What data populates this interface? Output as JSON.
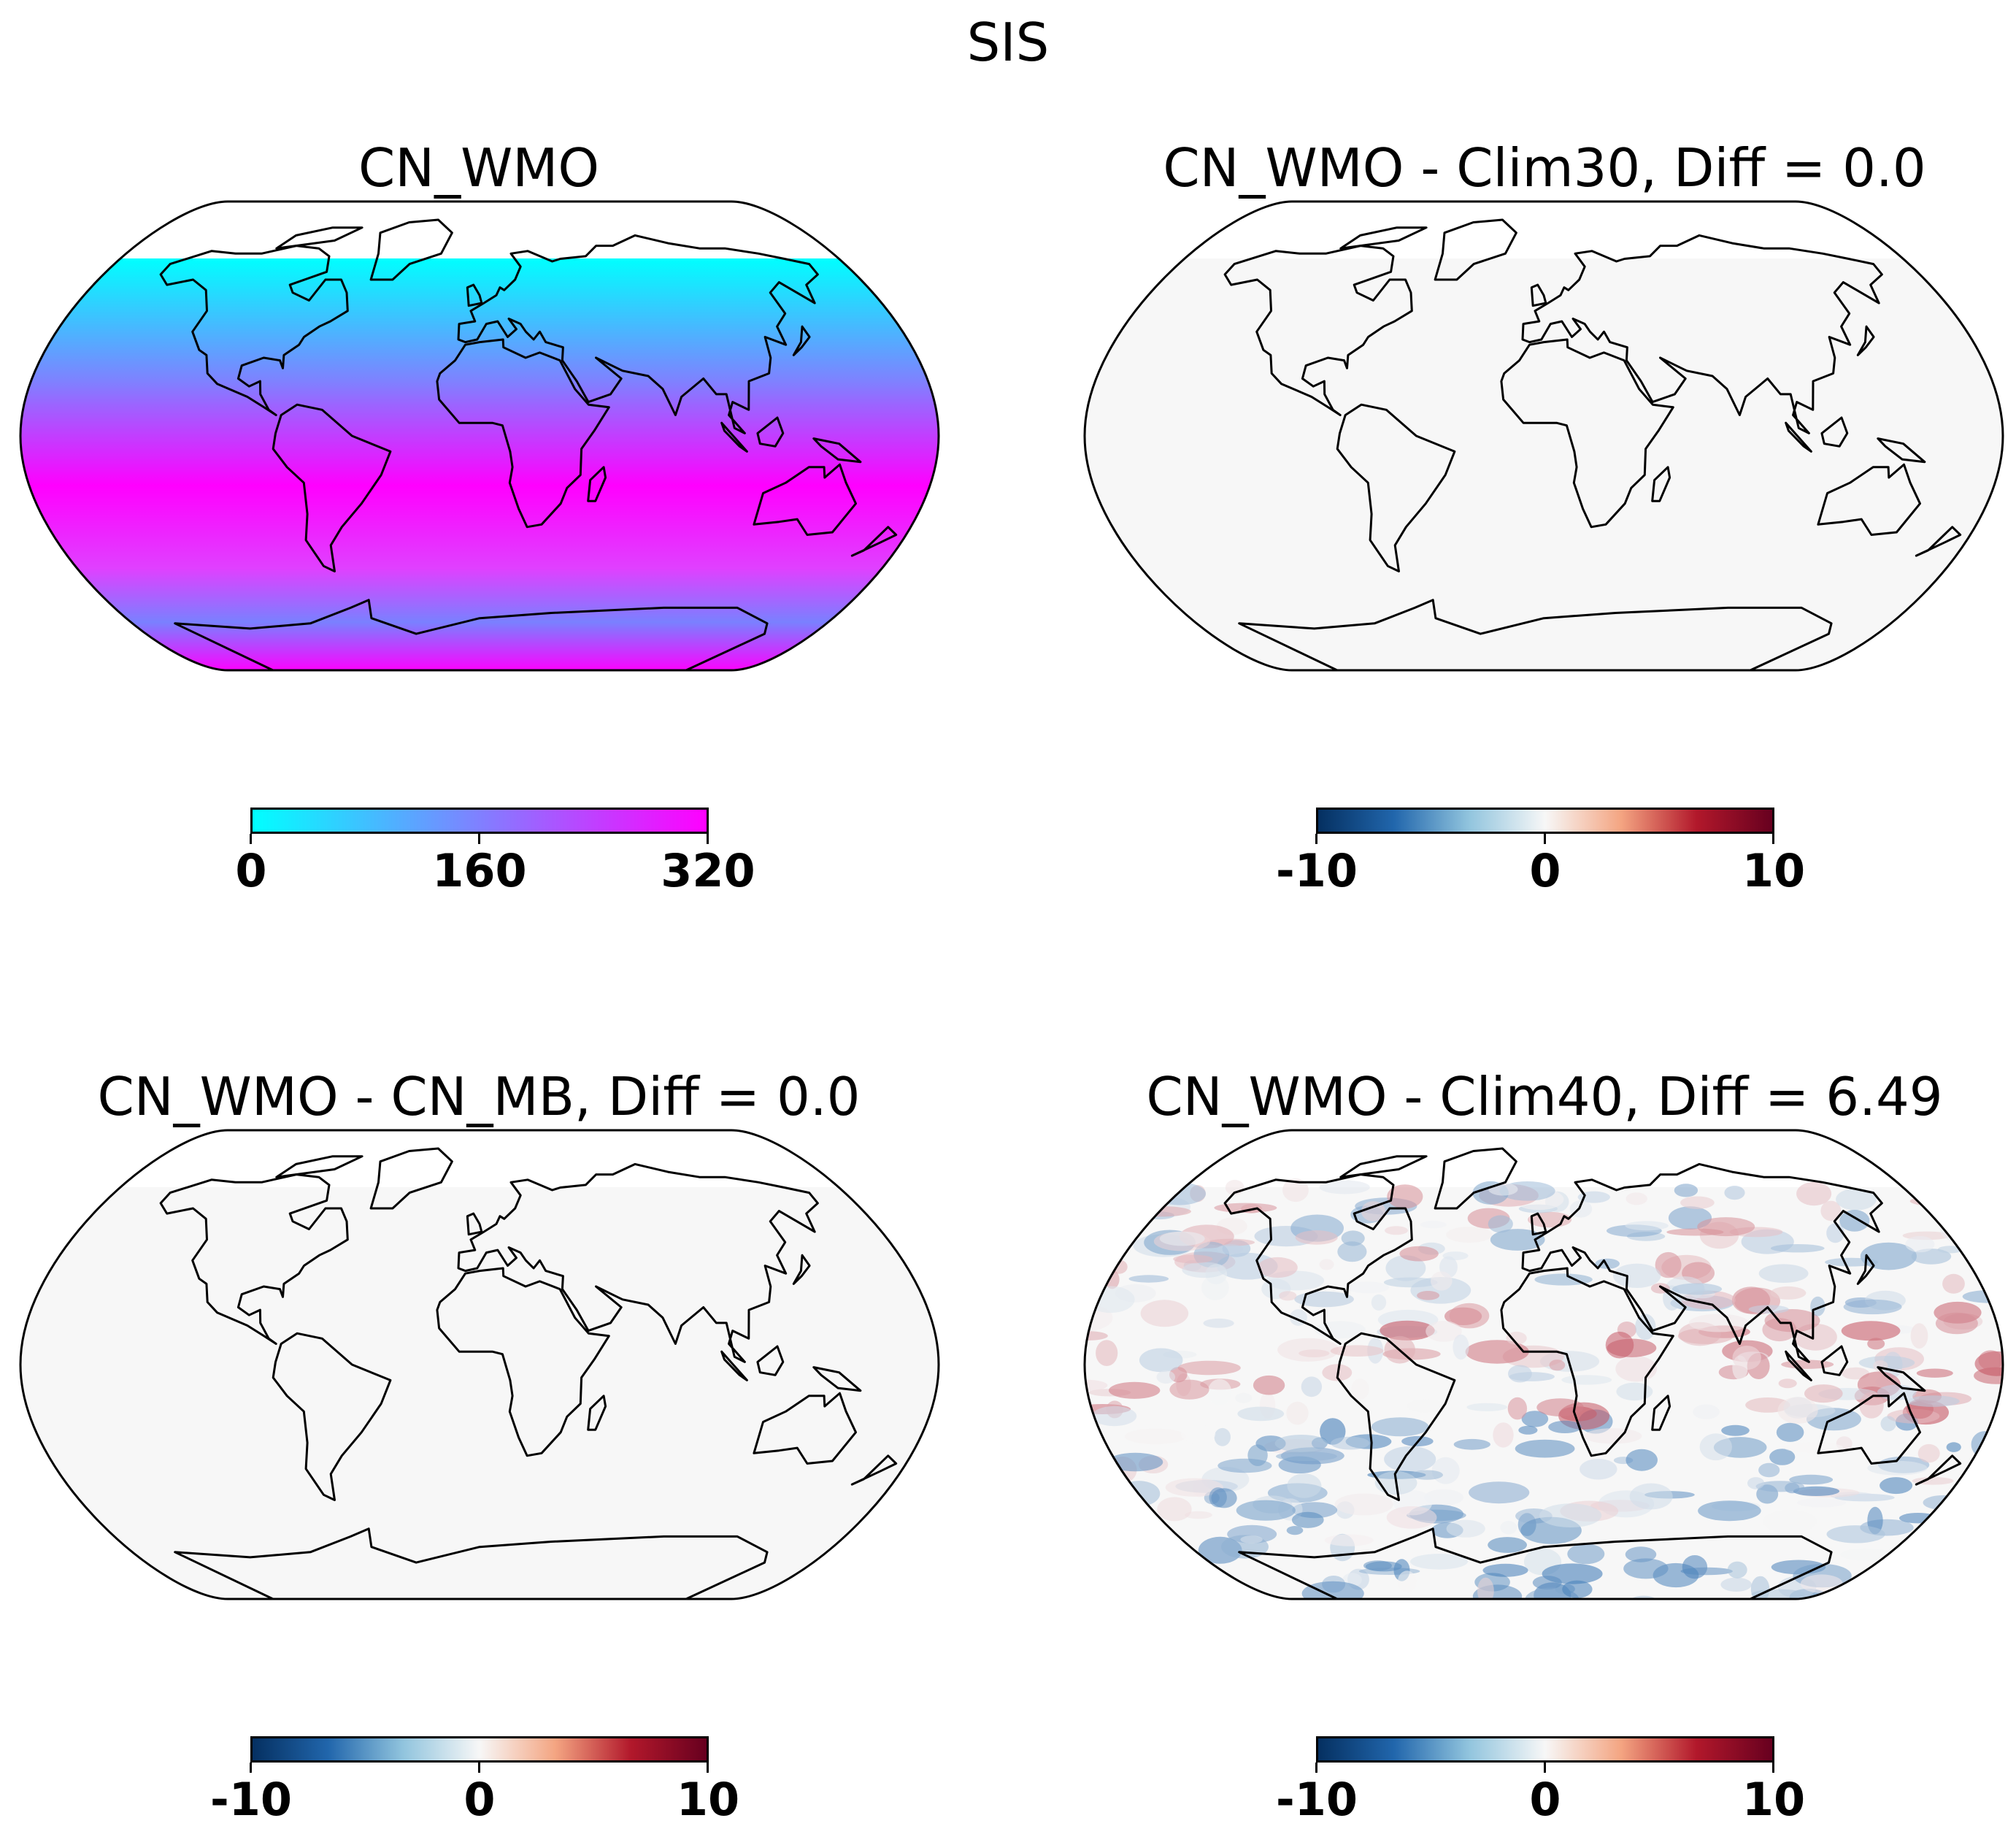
{
  "figure": {
    "title": "SIS"
  },
  "panels": [
    {
      "title": "CN_WMO",
      "style": "field",
      "colormap": "cool",
      "colorbar": {
        "ticks": [
          "0",
          "160",
          "320"
        ],
        "range": [
          0,
          320
        ]
      }
    },
    {
      "title": "CN_WMO - Clim30, Diff = 0.0",
      "style": "zero-diff",
      "colormap": "RdBu_r",
      "colorbar": {
        "ticks": [
          "-10",
          "0",
          "10"
        ],
        "range": [
          -10,
          10
        ]
      }
    },
    {
      "title": "CN_WMO - CN_MB, Diff = 0.0",
      "style": "zero-diff",
      "colormap": "RdBu_r",
      "colorbar": {
        "ticks": [
          "-10",
          "0",
          "10"
        ],
        "range": [
          -10,
          10
        ]
      }
    },
    {
      "title": "CN_WMO - Clim40, Diff = 6.49",
      "style": "noisy-diff",
      "colormap": "RdBu_r",
      "colorbar": {
        "ticks": [
          "-10",
          "0",
          "10"
        ],
        "range": [
          -10,
          10
        ]
      }
    }
  ],
  "colors": {
    "cool_low": "#00ffff",
    "cool_mid": "#8080ff",
    "cool_high": "#ff00ff",
    "rdbu_low": "#053061",
    "rdbu_mid": "#f7f7f7",
    "rdbu_high": "#67001f",
    "coast": "#000000"
  },
  "projection": "Robinson"
}
